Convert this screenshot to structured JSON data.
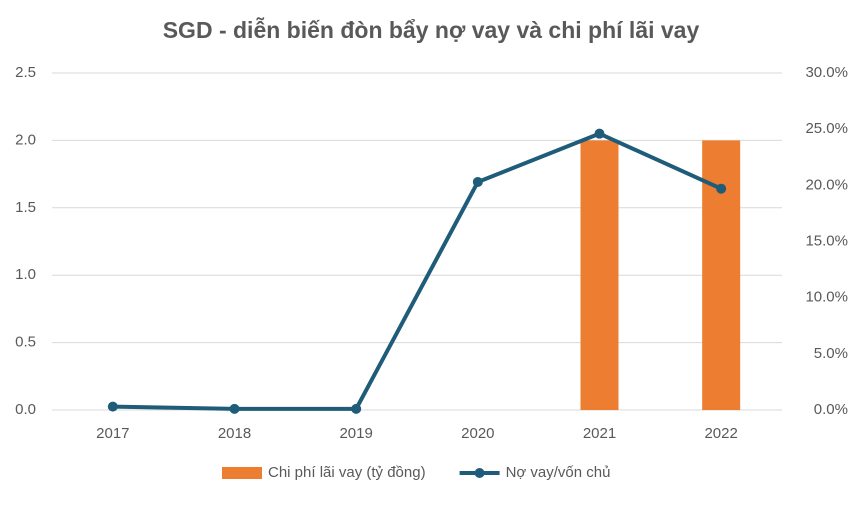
{
  "chart_data": {
    "type": "combo",
    "title": "SGD - diễn biến đòn bẩy nợ vay và chi phí lãi vay",
    "categories": [
      "2017",
      "2018",
      "2019",
      "2020",
      "2021",
      "2022"
    ],
    "series": [
      {
        "name": "Chi phí lãi vay (tỷ đồng)",
        "type": "bar",
        "color": "#ed7d31",
        "values": [
          0,
          0,
          0,
          0,
          2.0,
          2.0
        ]
      },
      {
        "name": "Nợ vay/vốn chủ",
        "type": "line",
        "axis": "y2",
        "color": "#1f5c7a",
        "values": [
          0.3,
          0.1,
          0.1,
          20.3,
          24.6,
          19.7
        ]
      }
    ],
    "ylim": [
      0,
      2.5
    ],
    "yticks": [
      {
        "value": 0,
        "label": "0.0"
      },
      0.5,
      {
        "value": 1,
        "label": "1.0"
      },
      1.5,
      {
        "value": 2,
        "label": "2.0"
      },
      2.5
    ],
    "y2lim": [
      0,
      30
    ],
    "y2ticks": [
      {
        "value": 0,
        "label": "0.0%"
      },
      {
        "value": 5,
        "label": "5.0%"
      },
      {
        "value": 10,
        "label": "10.0%"
      },
      {
        "value": 15,
        "label": "15.0%"
      },
      {
        "value": 20,
        "label": "20.0%"
      },
      {
        "value": 25,
        "label": "25.0%"
      },
      {
        "value": 30,
        "label": "30.0%"
      }
    ],
    "grid": true,
    "legend": "bottom"
  }
}
